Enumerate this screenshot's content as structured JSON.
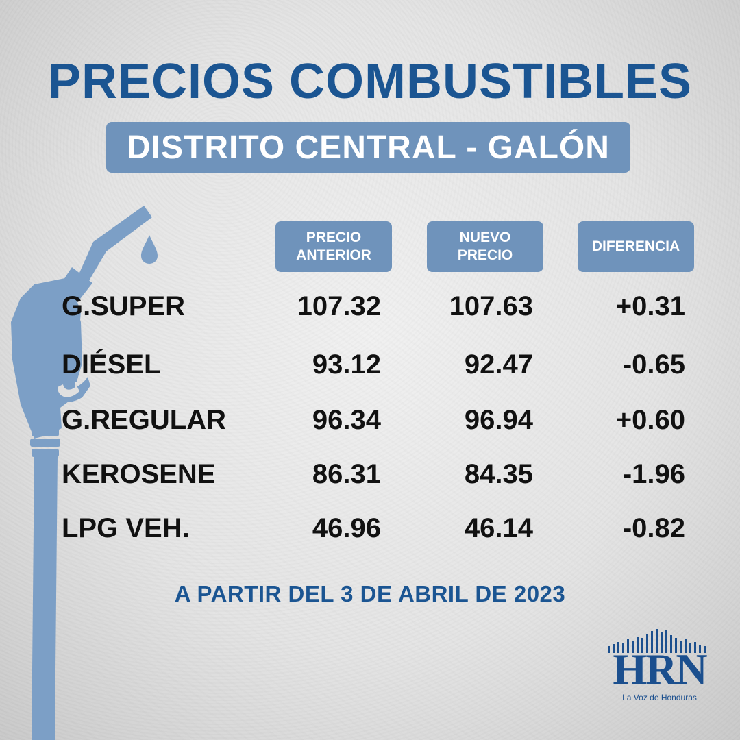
{
  "title": "PRECIOS COMBUSTIBLES",
  "subtitle": "DISTRITO CENTRAL - GALÓN",
  "columns": {
    "old": "PRECIO\nANTERIOR",
    "new": "NUEVO\nPRECIO",
    "diff": "DIFERENCIA"
  },
  "rows": [
    {
      "fuel": "G.SUPER",
      "old": "107.32",
      "new": "107.63",
      "diff": "+0.31"
    },
    {
      "fuel": "DIÉSEL",
      "old": "93.12",
      "new": "92.47",
      "diff": "-0.65"
    },
    {
      "fuel": "G.REGULAR",
      "old": "96.34",
      "new": "96.94",
      "diff": "+0.60"
    },
    {
      "fuel": "KEROSENE",
      "old": "86.31",
      "new": "84.35",
      "diff": "-1.96"
    },
    {
      "fuel": "LPG VEH.",
      "old": "46.96",
      "new": "46.14",
      "diff": "-0.82"
    }
  ],
  "date": "A PARTIR DEL 3 DE ABRIL DE 2023",
  "logo": {
    "name": "HRN",
    "tagline": "La Voz de Honduras"
  },
  "colors": {
    "brand_blue": "#1b5592",
    "box_blue": "#6f93bb",
    "nozzle_blue": "#7c9fc6"
  },
  "icons": {
    "background": "fuel-nozzle-icon",
    "drop": "fuel-drop-icon"
  }
}
